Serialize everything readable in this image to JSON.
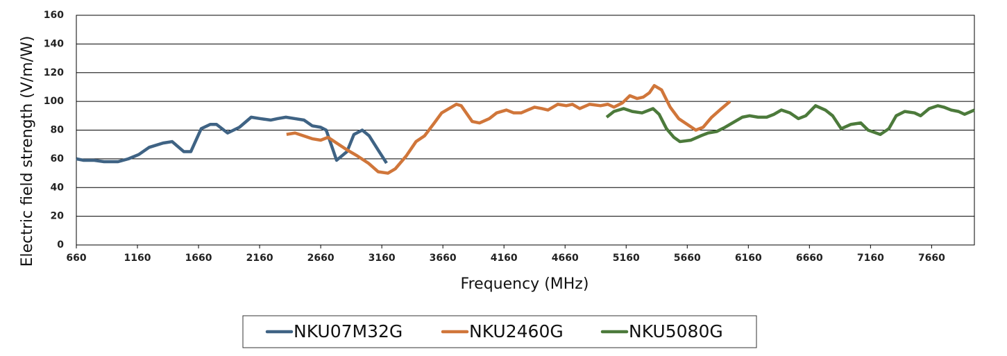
{
  "chart_data": {
    "type": "line",
    "x_label": "Frequency (MHz)",
    "y_label": "Electric field strength (V/m/W)",
    "xlim": [
      660,
      8010
    ],
    "xticks": [
      660,
      1160,
      1660,
      2160,
      2660,
      3160,
      3660,
      4160,
      4660,
      5160,
      5660,
      6160,
      6660,
      7160,
      7660
    ],
    "ylim": [
      0,
      160
    ],
    "yticks": [
      0,
      20,
      40,
      60,
      80,
      100,
      120,
      140,
      160
    ],
    "grid": true,
    "legend": "bottom",
    "series": [
      {
        "name": "NKU07M32G",
        "color": "#3f6384",
        "x": [
          660,
          717,
          802,
          887,
          1001,
          1086,
          1171,
          1256,
          1370,
          1444,
          1540,
          1597,
          1682,
          1756,
          1807,
          1898,
          1995,
          2091,
          2165,
          2250,
          2307,
          2375,
          2449,
          2523,
          2591,
          2659,
          2705,
          2790,
          2875,
          2932,
          3000,
          3057,
          3131,
          3199
        ],
        "values": [
          60,
          59,
          59,
          58,
          58,
          60,
          63,
          68,
          71,
          72,
          65,
          65,
          81,
          84,
          84,
          78,
          82,
          89,
          88,
          87,
          88,
          89,
          88,
          87,
          83,
          82,
          80,
          59,
          65,
          77,
          80,
          76,
          66,
          57
        ]
      },
      {
        "name": "NKU2460G",
        "color": "#d0763a",
        "x": [
          2380,
          2450,
          2520,
          2590,
          2660,
          2720,
          2790,
          2880,
          2960,
          3050,
          3130,
          3210,
          3270,
          3360,
          3440,
          3510,
          3590,
          3650,
          3730,
          3770,
          3810,
          3900,
          3960,
          4040,
          4100,
          4180,
          4240,
          4300,
          4410,
          4470,
          4520,
          4600,
          4670,
          4720,
          4780,
          4860,
          4950,
          5010,
          5060,
          5130,
          5190,
          5250,
          5300,
          5350,
          5390,
          5450,
          5520,
          5590,
          5660,
          5730,
          5790,
          5860,
          5940,
          6010
        ],
        "values": [
          77,
          78,
          76,
          74,
          73,
          75,
          71,
          66,
          62,
          57,
          51,
          50,
          53,
          62,
          72,
          76,
          85,
          92,
          96,
          98,
          97,
          86,
          85,
          88,
          92,
          94,
          92,
          92,
          96,
          95,
          94,
          98,
          97,
          98,
          95,
          98,
          97,
          98,
          96,
          99,
          104,
          102,
          103,
          106,
          111,
          108,
          96,
          88,
          84,
          80,
          82,
          89,
          95,
          100
        ]
      },
      {
        "name": "NKU5080G",
        "color": "#4c7a3b",
        "x": [
          5000,
          5060,
          5140,
          5210,
          5290,
          5380,
          5430,
          5490,
          5550,
          5600,
          5690,
          5770,
          5830,
          5900,
          5970,
          6050,
          6110,
          6170,
          6240,
          6310,
          6370,
          6430,
          6500,
          6570,
          6630,
          6710,
          6790,
          6850,
          6920,
          7000,
          7080,
          7140,
          7240,
          7310,
          7370,
          7440,
          7520,
          7570,
          7640,
          7710,
          7760,
          7820,
          7880,
          7930,
          8010
        ],
        "values": [
          89,
          93,
          95,
          93,
          92,
          95,
          91,
          81,
          75,
          72,
          73,
          76,
          78,
          79,
          82,
          86,
          89,
          90,
          89,
          89,
          91,
          94,
          92,
          88,
          90,
          97,
          94,
          90,
          81,
          84,
          85,
          80,
          77,
          81,
          90,
          93,
          92,
          90,
          95,
          97,
          96,
          94,
          93,
          91,
          94
        ]
      }
    ]
  }
}
